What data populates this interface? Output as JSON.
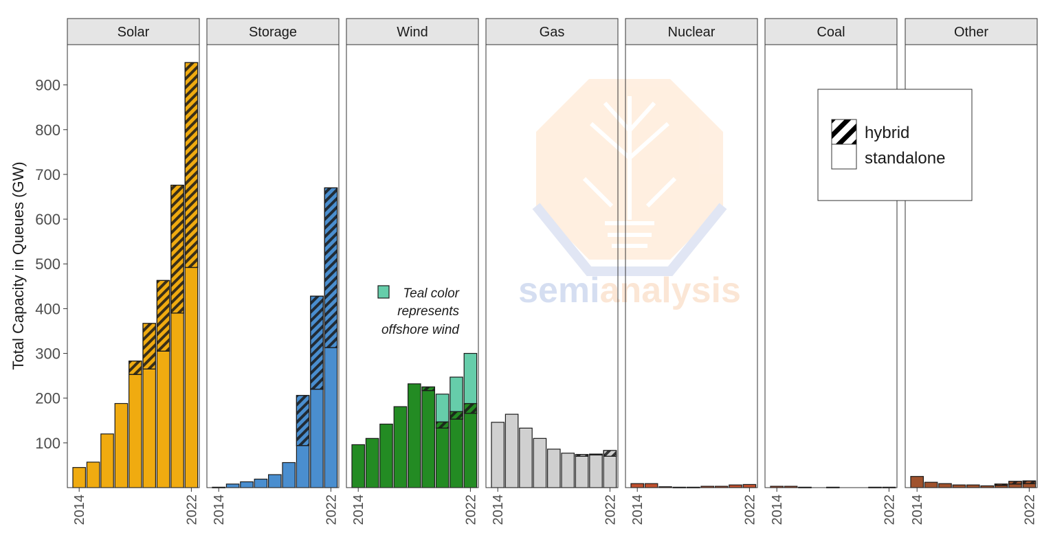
{
  "chart_data": {
    "type": "bar",
    "stacked": true,
    "facets": [
      "Solar",
      "Storage",
      "Wind",
      "Gas",
      "Nuclear",
      "Coal",
      "Other"
    ],
    "years": [
      2014,
      2015,
      2016,
      2017,
      2018,
      2019,
      2020,
      2021,
      2022
    ],
    "x_tick_labels": [
      "2014",
      "2022"
    ],
    "ylabel": "Total Capacity in Queues (GW)",
    "yticks": [
      100,
      200,
      300,
      400,
      500,
      600,
      700,
      800,
      900
    ],
    "ylim": [
      0,
      990
    ],
    "grid": false,
    "legend": {
      "placement": "top-right",
      "entries": [
        {
          "label": "hybrid",
          "pattern": "hatched"
        },
        {
          "label": "standalone",
          "pattern": "solid"
        }
      ]
    },
    "annotation": {
      "facet": "Wind",
      "lines": [
        "Teal color",
        "represents",
        "offshore wind"
      ],
      "swatch_color": "#66cdaa"
    },
    "colors": {
      "Solar": "#f0ab10",
      "Storage": "#4a8ecf",
      "Wind": "#238b23",
      "Wind_offshore": "#66cdaa",
      "Gas": "#d0d0d0",
      "Nuclear": "#c0502e",
      "Coal": "#c0502e",
      "Other": "#a0522d"
    },
    "series": [
      {
        "facet": "Solar",
        "standalone": [
          45,
          57,
          120,
          188,
          253,
          265,
          305,
          390,
          492
        ],
        "hybrid": [
          0,
          0,
          0,
          0,
          30,
          102,
          158,
          286,
          458
        ]
      },
      {
        "facet": "Storage",
        "standalone": [
          1,
          8,
          13,
          19,
          29,
          56,
          94,
          220,
          313
        ],
        "hybrid": [
          0,
          0,
          0,
          0,
          0,
          0,
          112,
          208,
          357
        ]
      },
      {
        "facet": "Wind",
        "standalone": [
          96,
          110,
          142,
          181,
          232,
          217,
          133,
          153,
          166
        ],
        "hybrid": [
          0,
          0,
          0,
          0,
          0,
          8,
          14,
          17,
          22
        ],
        "offshore": [
          0,
          0,
          0,
          0,
          0,
          0,
          62,
          77,
          112
        ]
      },
      {
        "facet": "Gas",
        "standalone": [
          146,
          164,
          133,
          110,
          86,
          77,
          70,
          73,
          70
        ],
        "hybrid": [
          0,
          0,
          0,
          0,
          0,
          0,
          4,
          2,
          13
        ]
      },
      {
        "facet": "Nuclear",
        "standalone": [
          9,
          9,
          2,
          1,
          1,
          3,
          3,
          6,
          7
        ],
        "hybrid": [
          0,
          0,
          0,
          0,
          0,
          0,
          0,
          0,
          0
        ]
      },
      {
        "facet": "Coal",
        "standalone": [
          3,
          3,
          1,
          0,
          1,
          0,
          0,
          1,
          1
        ],
        "hybrid": [
          0,
          0,
          0,
          0,
          0,
          0,
          0,
          0,
          0
        ]
      },
      {
        "facet": "Other",
        "standalone": [
          25,
          12,
          9,
          6,
          6,
          4,
          5,
          8,
          9
        ],
        "hybrid": [
          0,
          0,
          0,
          0,
          0,
          0,
          3,
          6,
          6
        ]
      }
    ]
  },
  "watermark": {
    "text_part1": "semi",
    "text_part2": "analysis"
  }
}
